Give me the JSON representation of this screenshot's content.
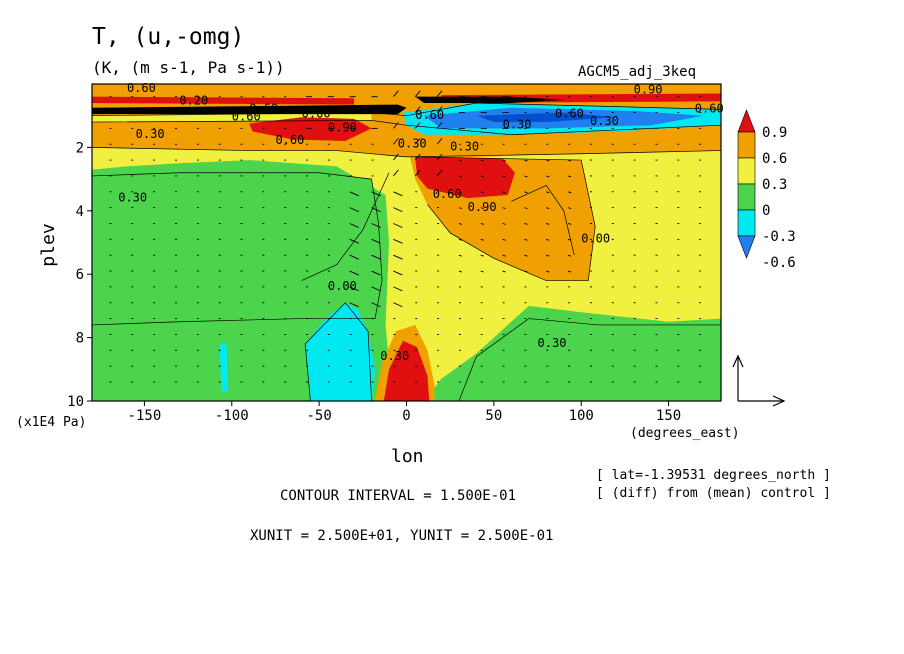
{
  "chart_data": {
    "type": "heatmap",
    "title": "T, (u,-omg)",
    "subtitle": "(K, (m s-1, Pa s-1))",
    "dataset_label": "AGCM5_adj_3keq",
    "xlabel": "lon",
    "ylabel": "plev",
    "y_unit_label": "(x1E4 Pa)",
    "x_unit_label": "(degrees_east)",
    "xlim": [
      -180,
      180
    ],
    "ylim": [
      10,
      0
    ],
    "x_ticks": [
      "-150",
      "-100",
      "-50",
      "0",
      "50",
      "100",
      "150"
    ],
    "x_tick_values": [
      -150,
      -100,
      -50,
      0,
      50,
      100,
      150
    ],
    "y_ticks": [
      "2",
      "4",
      "6",
      "8",
      "10"
    ],
    "y_tick_values": [
      2,
      4,
      6,
      8,
      10
    ],
    "colorbar": {
      "labels": [
        "0.9",
        "0.6",
        "0.3",
        "0",
        "-0.3",
        "-0.6"
      ],
      "colors": [
        "#f0c000",
        "#f09000",
        "#f0f040",
        "#4cd44c",
        "#00e0f0",
        "#2080f0",
        "#e00000"
      ]
    },
    "contour_labels": [
      "0.60",
      "0.60",
      "0.30",
      "0.20",
      "0.60",
      "0.60",
      "0.90",
      "0.60",
      "0.30",
      "0.00",
      "0.30",
      "0.60",
      "0.30",
      "0.60",
      "0.90",
      "0.60",
      "0.30",
      "0.30",
      "0.00",
      "0.30",
      "0.30",
      "0.90",
      "0.60"
    ],
    "regions": [
      {
        "value": 0.45,
        "x": [
          -180,
          180
        ],
        "y": [
          0,
          2.2
        ],
        "note": "upper orange band"
      },
      {
        "value": 0.95,
        "x": [
          -90,
          -20
        ],
        "y": [
          1.1,
          1.9
        ],
        "note": "upper western warm core"
      },
      {
        "value": -0.6,
        "x": [
          0,
          180
        ],
        "y": [
          0.8,
          1.4
        ],
        "note": "upper eastern cold band"
      },
      {
        "value": 0.15,
        "x": [
          -180,
          180
        ],
        "y": [
          2.2,
          7.5
        ],
        "note": "mid-level"
      },
      {
        "value": 0.95,
        "x": [
          5,
          60
        ],
        "y": [
          2.4,
          3.6
        ],
        "note": "mid warm core"
      },
      {
        "value": 0.6,
        "x": [
          5,
          105
        ],
        "y": [
          2.4,
          6.2
        ],
        "note": "orange mid region"
      },
      {
        "value": -0.15,
        "x": [
          -55,
          -20
        ],
        "y": [
          7.0,
          10
        ],
        "note": "low cyan"
      },
      {
        "value": 0.95,
        "x": [
          -15,
          15
        ],
        "y": [
          8.0,
          10
        ],
        "note": "low warm core"
      }
    ],
    "vector_reference": "arrow",
    "contour_interval_text": "CONTOUR INTERVAL = 1.500E-01",
    "unit_text": "XUNIT = 2.500E+01, YUNIT = 2.500E-01",
    "lat_note": "[ lat=-1.39531 degrees_north ]",
    "diff_note": "[ (diff) from (mean) control ]"
  }
}
